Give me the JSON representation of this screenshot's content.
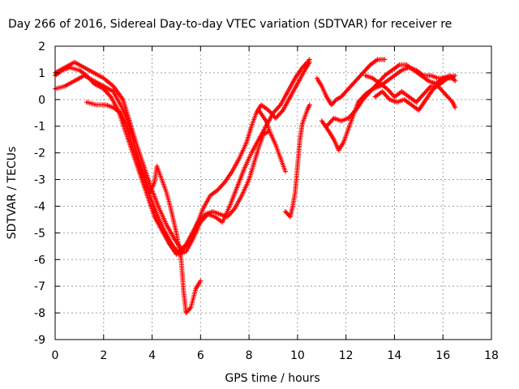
{
  "chart_data": {
    "type": "scatter",
    "title": "Day 266 of 2016, Sidereal Day-to-day VTEC variation (SDTVAR) for receiver re",
    "xlabel": "GPS time / hours",
    "ylabel": "SDTVAR / TECUs",
    "xlim": [
      0,
      18
    ],
    "ylim": [
      -9,
      2
    ],
    "xticks": [
      "0",
      "2",
      "4",
      "6",
      "8",
      "10",
      "12",
      "14",
      "16",
      "18"
    ],
    "yticks": [
      "-9",
      "-8",
      "-7",
      "-6",
      "-5",
      "-4",
      "-3",
      "-2",
      "-1",
      "0",
      "1",
      "2"
    ],
    "grid": true,
    "marker": "plus",
    "color": "#ff0000",
    "series": [
      {
        "points": [
          [
            0.0,
            0.9
          ],
          [
            0.3,
            1.1
          ],
          [
            0.6,
            1.2
          ],
          [
            1.0,
            1.1
          ],
          [
            1.3,
            0.9
          ],
          [
            1.6,
            0.6
          ],
          [
            2.0,
            0.4
          ],
          [
            2.3,
            0.1
          ],
          [
            2.6,
            -0.4
          ],
          [
            2.9,
            -1.2
          ],
          [
            3.2,
            -2.0
          ],
          [
            3.5,
            -2.8
          ],
          [
            3.8,
            -3.6
          ],
          [
            4.1,
            -4.4
          ],
          [
            4.4,
            -4.9
          ],
          [
            4.7,
            -5.4
          ],
          [
            5.0,
            -5.8
          ],
          [
            5.3,
            -5.6
          ],
          [
            5.6,
            -5.1
          ],
          [
            5.9,
            -4.6
          ],
          [
            6.2,
            -4.3
          ],
          [
            6.5,
            -4.2
          ],
          [
            6.8,
            -4.3
          ],
          [
            7.1,
            -4.4
          ],
          [
            7.4,
            -4.1
          ],
          [
            7.7,
            -3.6
          ],
          [
            8.0,
            -3.0
          ],
          [
            8.2,
            -2.4
          ],
          [
            8.4,
            -1.8
          ],
          [
            8.6,
            -1.3
          ],
          [
            8.8,
            -1.2
          ]
        ]
      },
      {
        "points": [
          [
            0.0,
            1.0
          ],
          [
            0.4,
            1.2
          ],
          [
            0.8,
            1.4
          ],
          [
            1.2,
            1.2
          ],
          [
            1.6,
            1.0
          ],
          [
            2.0,
            0.8
          ],
          [
            2.4,
            0.5
          ],
          [
            2.8,
            0.0
          ],
          [
            3.1,
            -0.9
          ],
          [
            3.4,
            -1.8
          ],
          [
            3.7,
            -2.6
          ],
          [
            4.0,
            -3.4
          ],
          [
            4.3,
            -4.1
          ],
          [
            4.6,
            -4.7
          ],
          [
            4.9,
            -5.2
          ],
          [
            5.2,
            -5.6
          ],
          [
            5.5,
            -5.4
          ],
          [
            5.8,
            -4.8
          ],
          [
            6.1,
            -4.1
          ],
          [
            6.4,
            -3.6
          ],
          [
            6.7,
            -3.4
          ],
          [
            7.0,
            -3.1
          ],
          [
            7.3,
            -2.7
          ],
          [
            7.6,
            -2.2
          ],
          [
            7.9,
            -1.6
          ],
          [
            8.1,
            -1.0
          ],
          [
            8.3,
            -0.5
          ],
          [
            8.5,
            -0.2
          ],
          [
            8.8,
            -0.4
          ],
          [
            9.1,
            -0.7
          ],
          [
            9.4,
            -0.4
          ],
          [
            9.7,
            0.1
          ],
          [
            10.0,
            0.6
          ],
          [
            10.3,
            1.1
          ],
          [
            10.5,
            1.4
          ]
        ]
      },
      {
        "points": [
          [
            0.0,
            0.4
          ],
          [
            0.4,
            0.5
          ],
          [
            0.8,
            0.7
          ],
          [
            1.2,
            0.9
          ],
          [
            1.6,
            0.7
          ],
          [
            2.0,
            0.5
          ],
          [
            2.4,
            0.3
          ],
          [
            2.7,
            -0.2
          ],
          [
            3.0,
            -0.8
          ],
          [
            3.3,
            -1.8
          ],
          [
            3.6,
            -2.7
          ],
          [
            3.9,
            -3.6
          ],
          [
            4.2,
            -4.3
          ],
          [
            4.5,
            -4.9
          ],
          [
            4.8,
            -5.4
          ],
          [
            5.1,
            -5.8
          ],
          [
            5.4,
            -5.7
          ],
          [
            5.7,
            -5.2
          ],
          [
            6.0,
            -4.6
          ],
          [
            6.3,
            -4.3
          ],
          [
            6.6,
            -4.4
          ],
          [
            6.9,
            -4.6
          ],
          [
            7.2,
            -4.0
          ],
          [
            7.5,
            -3.3
          ],
          [
            7.8,
            -2.6
          ],
          [
            8.1,
            -2.0
          ],
          [
            8.4,
            -1.5
          ],
          [
            8.7,
            -1.0
          ],
          [
            9.0,
            -0.5
          ],
          [
            9.3,
            -0.2
          ],
          [
            9.6,
            0.3
          ],
          [
            9.9,
            0.8
          ],
          [
            10.2,
            1.2
          ],
          [
            10.5,
            1.5
          ]
        ]
      },
      {
        "points": [
          [
            1.3,
            -0.1
          ],
          [
            1.7,
            -0.2
          ],
          [
            2.1,
            -0.2
          ],
          [
            2.4,
            -0.3
          ],
          [
            2.7,
            -0.5
          ],
          [
            2.9,
            -0.9
          ],
          [
            3.1,
            -1.5
          ],
          [
            3.4,
            -2.3
          ],
          [
            3.7,
            -3.0
          ],
          [
            3.9,
            -3.5
          ],
          [
            4.1,
            -3.1
          ],
          [
            4.2,
            -2.5
          ],
          [
            4.4,
            -3.0
          ],
          [
            4.6,
            -3.5
          ],
          [
            4.8,
            -4.2
          ],
          [
            5.0,
            -5.0
          ],
          [
            5.2,
            -6.0
          ],
          [
            5.3,
            -7.2
          ],
          [
            5.4,
            -8.0
          ],
          [
            5.6,
            -7.8
          ],
          [
            5.8,
            -7.1
          ],
          [
            6.0,
            -6.8
          ]
        ]
      },
      {
        "points": [
          [
            8.4,
            -0.4
          ],
          [
            8.7,
            -0.8
          ],
          [
            8.9,
            -1.3
          ],
          [
            9.1,
            -1.7
          ],
          [
            9.3,
            -2.2
          ],
          [
            9.5,
            -2.7
          ]
        ]
      },
      {
        "points": [
          [
            9.5,
            -4.2
          ],
          [
            9.7,
            -4.4
          ],
          [
            9.8,
            -4.0
          ],
          [
            9.9,
            -3.5
          ],
          [
            10.0,
            -2.5
          ],
          [
            10.1,
            -1.5
          ],
          [
            10.2,
            -0.9
          ],
          [
            10.4,
            -0.4
          ],
          [
            10.5,
            -0.2
          ]
        ]
      },
      {
        "points": [
          [
            10.8,
            0.8
          ],
          [
            11.0,
            0.5
          ],
          [
            11.2,
            0.1
          ],
          [
            11.4,
            -0.2
          ],
          [
            11.6,
            0.0
          ],
          [
            11.8,
            0.1
          ],
          [
            12.0,
            0.3
          ],
          [
            12.2,
            0.5
          ],
          [
            12.4,
            0.7
          ],
          [
            12.6,
            0.9
          ],
          [
            12.8,
            1.1
          ],
          [
            13.0,
            1.3
          ],
          [
            13.3,
            1.5
          ],
          [
            13.6,
            1.5
          ]
        ]
      },
      {
        "points": [
          [
            11.0,
            -0.8
          ],
          [
            11.3,
            -1.2
          ],
          [
            11.5,
            -1.5
          ],
          [
            11.7,
            -1.9
          ],
          [
            11.9,
            -1.6
          ],
          [
            12.1,
            -1.1
          ],
          [
            12.3,
            -0.6
          ],
          [
            12.5,
            -0.1
          ],
          [
            12.8,
            0.2
          ],
          [
            13.1,
            0.4
          ],
          [
            13.4,
            0.5
          ],
          [
            13.7,
            0.7
          ],
          [
            14.0,
            0.9
          ],
          [
            14.3,
            1.1
          ],
          [
            14.6,
            1.2
          ],
          [
            14.9,
            1.1
          ],
          [
            15.2,
            0.9
          ],
          [
            15.5,
            0.9
          ],
          [
            15.8,
            0.8
          ],
          [
            16.1,
            0.8
          ],
          [
            16.4,
            0.8
          ]
        ]
      },
      {
        "points": [
          [
            11.2,
            -1.0
          ],
          [
            11.5,
            -0.7
          ],
          [
            11.8,
            -0.8
          ],
          [
            12.1,
            -0.7
          ],
          [
            12.4,
            -0.4
          ],
          [
            12.7,
            0.0
          ],
          [
            13.0,
            0.3
          ],
          [
            13.3,
            0.6
          ],
          [
            13.6,
            0.9
          ],
          [
            13.9,
            1.1
          ],
          [
            14.2,
            1.3
          ],
          [
            14.5,
            1.3
          ],
          [
            14.8,
            1.1
          ],
          [
            15.1,
            0.9
          ],
          [
            15.4,
            0.7
          ],
          [
            15.7,
            0.6
          ],
          [
            16.0,
            0.8
          ],
          [
            16.3,
            0.9
          ],
          [
            16.5,
            0.7
          ]
        ]
      },
      {
        "points": [
          [
            12.8,
            0.9
          ],
          [
            13.1,
            0.8
          ],
          [
            13.4,
            0.6
          ],
          [
            13.7,
            0.4
          ],
          [
            14.0,
            0.1
          ],
          [
            14.3,
            0.3
          ],
          [
            14.6,
            0.1
          ],
          [
            14.9,
            -0.1
          ],
          [
            15.2,
            0.2
          ],
          [
            15.5,
            0.5
          ],
          [
            15.8,
            0.5
          ],
          [
            16.1,
            0.2
          ],
          [
            16.4,
            -0.1
          ],
          [
            16.5,
            -0.3
          ]
        ]
      },
      {
        "points": [
          [
            13.2,
            0.1
          ],
          [
            13.5,
            0.3
          ],
          [
            13.8,
            0.0
          ],
          [
            14.1,
            -0.1
          ],
          [
            14.4,
            0.0
          ],
          [
            14.7,
            -0.2
          ],
          [
            15.0,
            -0.4
          ],
          [
            15.3,
            0.0
          ],
          [
            15.6,
            0.4
          ],
          [
            15.9,
            0.6
          ],
          [
            16.2,
            0.8
          ],
          [
            16.5,
            0.9
          ]
        ]
      }
    ]
  }
}
